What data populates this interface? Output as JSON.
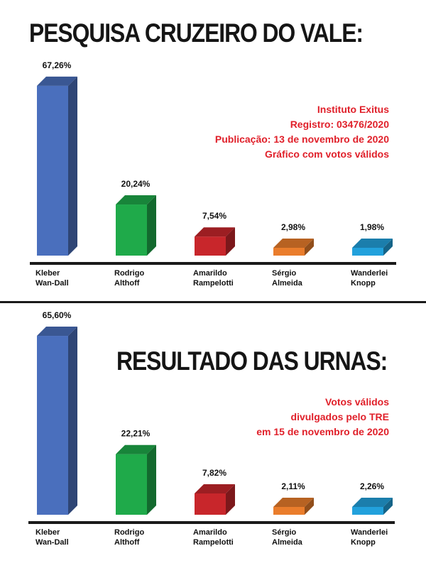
{
  "chart_data": [
    {
      "type": "bar",
      "title": "PESQUISA CRUZEIRO DO VALE:",
      "notes": [
        "Instituto Exitus",
        "Registro: 03476/2020",
        "Publicação: 13 de novembro de 2020",
        "Gráfico com votos válidos"
      ],
      "categories": [
        [
          "Kleber",
          "Wan-Dall"
        ],
        [
          "Rodrigo",
          "Althoff"
        ],
        [
          "Amarildo",
          "Rampelotti"
        ],
        [
          "Sérgio",
          "Almeida"
        ],
        [
          "Wanderlei",
          "Knopp"
        ]
      ],
      "values": [
        67.26,
        20.24,
        7.54,
        2.98,
        1.98
      ],
      "value_labels": [
        "67,26%",
        "20,24%",
        "7,54%",
        "2,98%",
        "1,98%"
      ],
      "colors": [
        "#4a6fbd",
        "#1faa4a",
        "#c8262b",
        "#ea7d2c",
        "#22a1dc"
      ],
      "ylim": [
        0,
        70
      ],
      "grid": false
    },
    {
      "type": "bar",
      "title": "RESULTADO DAS URNAS:",
      "notes": [
        "Votos válidos",
        "divulgados pelo TRE",
        "em 15 de novembro de 2020"
      ],
      "categories": [
        [
          "Kleber",
          "Wan-Dall"
        ],
        [
          "Rodrigo",
          "Althoff"
        ],
        [
          "Amarildo",
          "Rampelotti"
        ],
        [
          "Sérgio",
          "Almeida"
        ],
        [
          "Wanderlei",
          "Knopp"
        ]
      ],
      "values": [
        65.6,
        22.21,
        7.82,
        2.11,
        2.26
      ],
      "value_labels": [
        "65,60%",
        "22,21%",
        "7,82%",
        "2,11%",
        "2,26%"
      ],
      "colors": [
        "#4a6fbd",
        "#1faa4a",
        "#c8262b",
        "#ea7d2c",
        "#22a1dc"
      ],
      "ylim": [
        0,
        70
      ],
      "grid": false
    }
  ]
}
